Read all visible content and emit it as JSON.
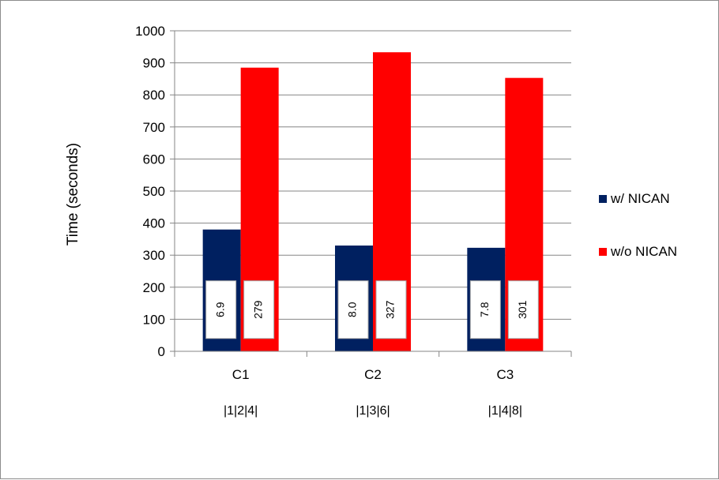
{
  "chart_data": {
    "type": "bar",
    "categories": [
      "C1",
      "C2",
      "C3"
    ],
    "category_sublabels": [
      "|1|2|4|",
      "|1|3|6|",
      "|1|4|8|"
    ],
    "series": [
      {
        "name": "w/ NICAN",
        "values": [
          380,
          330,
          323
        ],
        "box_labels": [
          "6.9",
          "8.0",
          "7.8"
        ],
        "color": "#002060"
      },
      {
        "name": "w/o NICAN",
        "values": [
          885,
          933,
          853
        ],
        "box_labels": [
          "279",
          "327",
          "301"
        ],
        "color": "#ff0000"
      }
    ],
    "ylabel": "Time  (seconds)",
    "ylim": [
      0,
      1000
    ],
    "yticks": [
      0,
      100,
      200,
      300,
      400,
      500,
      600,
      700,
      800,
      900,
      1000
    ],
    "grid": true,
    "legend_position": "right"
  }
}
